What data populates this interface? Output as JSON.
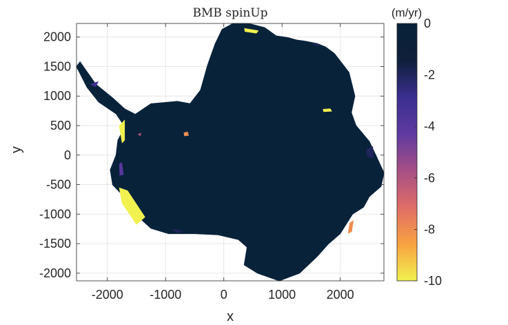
{
  "chart_data": {
    "type": "heatmap",
    "title": "BMB spinUp",
    "xlabel": "x",
    "ylabel": "y",
    "xlim": [
      -2530,
      2750
    ],
    "ylim": [
      -2130,
      2230
    ],
    "xticks": [
      -2000,
      -1000,
      0,
      1000,
      2000
    ],
    "xtick_labels": [
      "-2000",
      "-1000",
      "0",
      "1000",
      "2000"
    ],
    "yticks": [
      2000,
      1500,
      1000,
      500,
      0,
      -500,
      -1000,
      -1500,
      -2000
    ],
    "ytick_labels": [
      "2000",
      "1500",
      "1000",
      "500",
      "0",
      "-500",
      "-1000",
      "-1500",
      "-2000"
    ],
    "grid": true,
    "colorbar": {
      "label": "(m/yr)",
      "min": -10,
      "max": 0,
      "ticks": [
        0,
        -2,
        -4,
        -6,
        -8,
        -10
      ],
      "tick_labels": [
        "0",
        "-2",
        "-4",
        "-6",
        "-8",
        "-10"
      ],
      "colormap": [
        "#f1f150",
        "#f8a241",
        "#e06d67",
        "#a64f86",
        "#5f3aa0",
        "#3a2f8f",
        "#0f1f3a",
        "#08223a"
      ]
    },
    "background_value": 0,
    "ice_color": "#08223a",
    "continent_outline": [
      [
        -2470,
        1580
      ],
      [
        -2200,
        1200
      ],
      [
        -1900,
        960
      ],
      [
        -1700,
        780
      ],
      [
        -1520,
        690
      ],
      [
        -1250,
        870
      ],
      [
        -800,
        910
      ],
      [
        -580,
        870
      ],
      [
        -400,
        1100
      ],
      [
        -280,
        1520
      ],
      [
        -150,
        1880
      ],
      [
        -30,
        2130
      ],
      [
        160,
        2230
      ],
      [
        420,
        2230
      ],
      [
        700,
        2160
      ],
      [
        900,
        2020
      ],
      [
        1100,
        1990
      ],
      [
        1250,
        1950
      ],
      [
        1400,
        1930
      ],
      [
        1600,
        1890
      ],
      [
        1750,
        1830
      ],
      [
        1900,
        1720
      ],
      [
        2150,
        1400
      ],
      [
        2250,
        1000
      ],
      [
        2190,
        720
      ],
      [
        2270,
        500
      ],
      [
        2500,
        230
      ],
      [
        2610,
        0
      ],
      [
        2750,
        -300
      ],
      [
        2700,
        -530
      ],
      [
        2500,
        -700
      ],
      [
        2400,
        -880
      ],
      [
        2210,
        -1000
      ],
      [
        2000,
        -1330
      ],
      [
        1800,
        -1500
      ],
      [
        1600,
        -1720
      ],
      [
        1300,
        -2000
      ],
      [
        950,
        -2130
      ],
      [
        580,
        -2000
      ],
      [
        350,
        -1860
      ],
      [
        400,
        -1560
      ],
      [
        250,
        -1430
      ],
      [
        -100,
        -1350
      ],
      [
        -500,
        -1330
      ],
      [
        -950,
        -1330
      ],
      [
        -1250,
        -1240
      ],
      [
        -1520,
        -1000
      ],
      [
        -1700,
        -720
      ],
      [
        -1910,
        -500
      ],
      [
        -1950,
        -250
      ],
      [
        -1850,
        0
      ],
      [
        -1820,
        250
      ],
      [
        -1700,
        480
      ],
      [
        -1850,
        700
      ],
      [
        -2150,
        900
      ],
      [
        -2350,
        1150
      ],
      [
        -2530,
        1500
      ]
    ],
    "melt_regions": [
      {
        "value": -10,
        "points": [
          [
            -1800,
            500
          ],
          [
            -1700,
            600
          ],
          [
            -1700,
            250
          ],
          [
            -1750,
            200
          ]
        ]
      },
      {
        "value": -10,
        "points": [
          [
            -1800,
            -550
          ],
          [
            -1650,
            -600
          ],
          [
            -1350,
            -1050
          ],
          [
            -1500,
            -1180
          ],
          [
            -1750,
            -820
          ]
        ]
      },
      {
        "value": -10,
        "points": [
          [
            1700,
            780
          ],
          [
            1830,
            790
          ],
          [
            1860,
            740
          ],
          [
            1710,
            730
          ]
        ]
      },
      {
        "value": -10,
        "points": [
          [
            350,
            2150
          ],
          [
            600,
            2110
          ],
          [
            560,
            2060
          ],
          [
            360,
            2090
          ]
        ]
      },
      {
        "value": -8,
        "points": [
          [
            -690,
            380
          ],
          [
            -620,
            400
          ],
          [
            -600,
            330
          ],
          [
            -680,
            320
          ]
        ]
      },
      {
        "value": -8,
        "points": [
          [
            2160,
            -1150
          ],
          [
            2230,
            -1100
          ],
          [
            2200,
            -1300
          ],
          [
            2130,
            -1330
          ]
        ]
      },
      {
        "value": -6,
        "points": [
          [
            -1480,
            350
          ],
          [
            -1420,
            380
          ],
          [
            -1430,
            320
          ]
        ]
      },
      {
        "value": -4,
        "points": [
          [
            -1800,
            -150
          ],
          [
            -1750,
            -120
          ],
          [
            -1720,
            -330
          ],
          [
            -1790,
            -350
          ]
        ]
      },
      {
        "value": -3,
        "points": [
          [
            -2300,
            1200
          ],
          [
            -2200,
            1150
          ],
          [
            -2150,
            1250
          ]
        ]
      },
      {
        "value": -2,
        "points": [
          [
            2450,
            100
          ],
          [
            2560,
            150
          ],
          [
            2580,
            -50
          ],
          [
            2460,
            -30
          ]
        ]
      },
      {
        "value": -2,
        "points": [
          [
            -900,
            -1250
          ],
          [
            -700,
            -1280
          ],
          [
            -800,
            -1320
          ]
        ]
      },
      {
        "value": -2,
        "points": [
          [
            1500,
            1900
          ],
          [
            1650,
            1880
          ],
          [
            1600,
            1840
          ]
        ]
      }
    ]
  }
}
